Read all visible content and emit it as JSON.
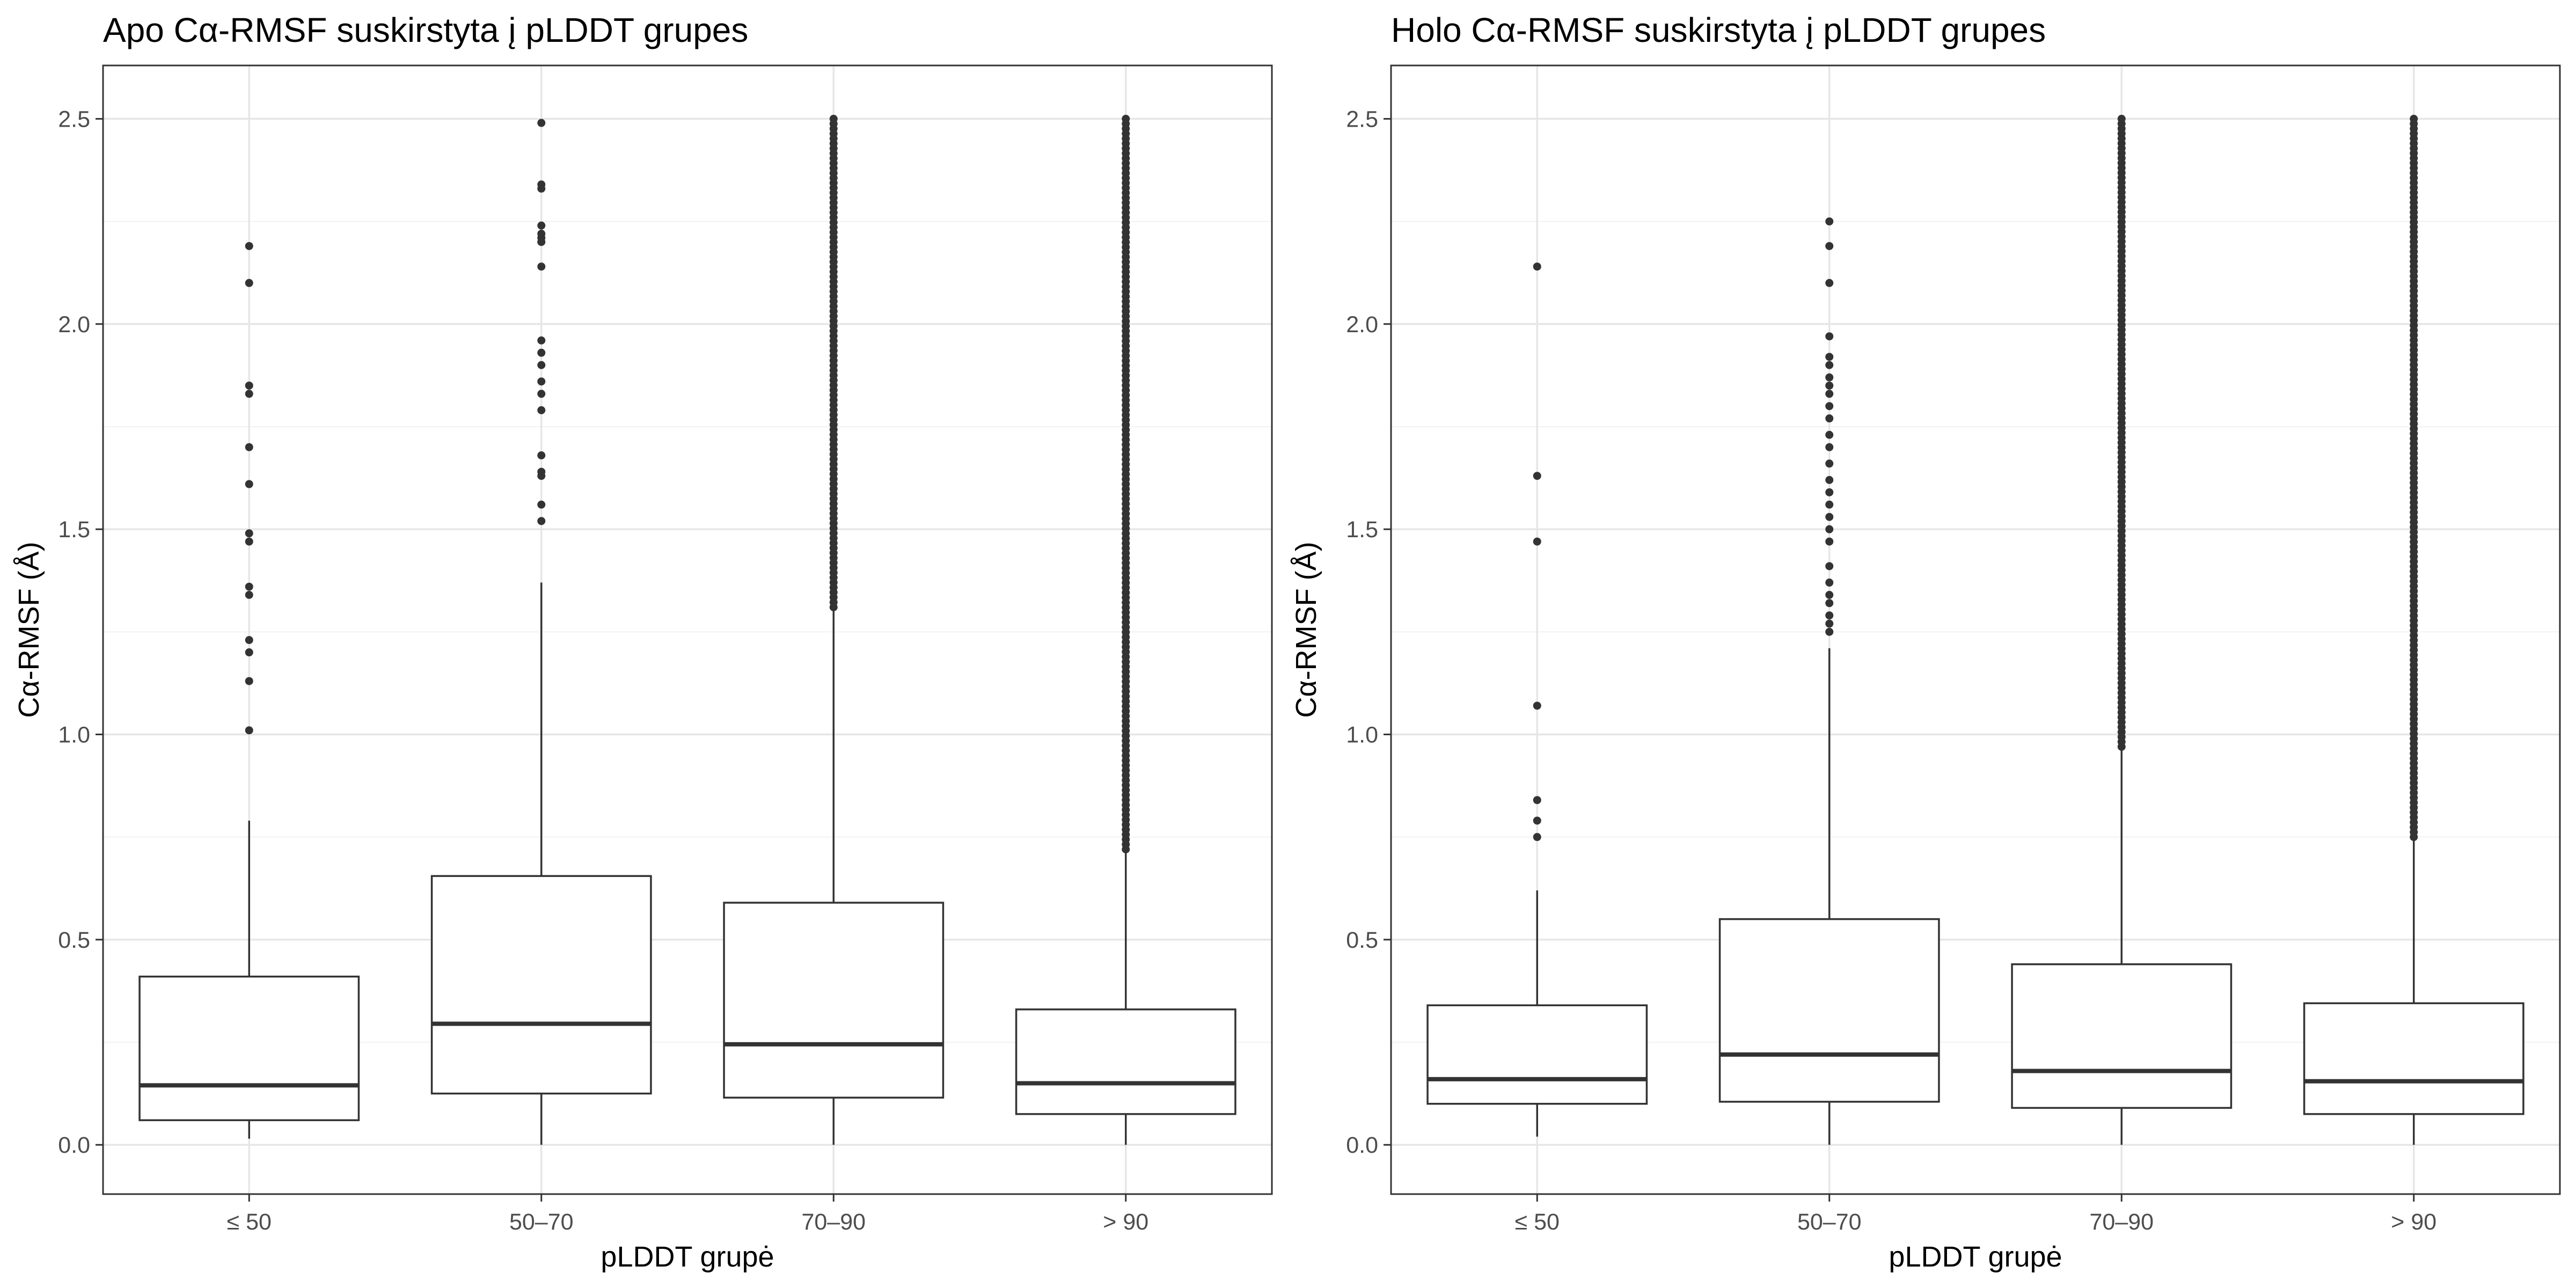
{
  "chart_data": [
    {
      "type": "box",
      "title": "Apo Cα-RMSF suskirstyta į pLDDT grupes",
      "xlabel": "pLDDT grupė",
      "ylabel": "Cα-RMSF (Å)",
      "ylim": [
        -0.12,
        2.63
      ],
      "yticks": [
        0.0,
        0.5,
        1.0,
        1.5,
        2.0,
        2.5
      ],
      "ytick_labels": [
        "0.0",
        "0.5",
        "1.0",
        "1.5",
        "2.0",
        "2.5"
      ],
      "grid": true,
      "categories": [
        "≤ 50",
        "50–70",
        "70–90",
        "> 90"
      ],
      "boxes": [
        {
          "category": "≤ 50",
          "whisker_low": 0.015,
          "q1": 0.06,
          "median": 0.145,
          "q3": 0.41,
          "whisker_high": 0.79,
          "outliers": [
            1.01,
            1.13,
            1.2,
            1.23,
            1.34,
            1.36,
            1.47,
            1.49,
            1.61,
            1.7,
            1.83,
            1.85,
            2.1,
            2.19
          ]
        },
        {
          "category": "50–70",
          "whisker_low": 0.0,
          "q1": 0.125,
          "median": 0.295,
          "q3": 0.655,
          "whisker_high": 1.37,
          "outliers": [
            1.52,
            1.56,
            1.63,
            1.64,
            1.68,
            1.79,
            1.83,
            1.86,
            1.9,
            1.93,
            1.96,
            2.14,
            2.2,
            2.21,
            2.22,
            2.24,
            2.33,
            2.34,
            2.49
          ]
        },
        {
          "category": "70–90",
          "whisker_low": 0.0,
          "q1": 0.115,
          "median": 0.245,
          "q3": 0.59,
          "whisker_high": 1.31,
          "outliers_dense_range": [
            1.31,
            2.5
          ]
        },
        {
          "category": "> 90",
          "whisker_low": 0.0,
          "q1": 0.075,
          "median": 0.15,
          "q3": 0.33,
          "whisker_high": 0.72,
          "outliers_dense_range": [
            0.72,
            2.5
          ]
        }
      ]
    },
    {
      "type": "box",
      "title": "Holo Cα-RMSF suskirstyta į pLDDT grupes",
      "xlabel": "pLDDT grupė",
      "ylabel": "Cα-RMSF (Å)",
      "ylim": [
        -0.12,
        2.63
      ],
      "yticks": [
        0.0,
        0.5,
        1.0,
        1.5,
        2.0,
        2.5
      ],
      "ytick_labels": [
        "0.0",
        "0.5",
        "1.0",
        "1.5",
        "2.0",
        "2.5"
      ],
      "grid": true,
      "categories": [
        "≤ 50",
        "50–70",
        "70–90",
        "> 90"
      ],
      "boxes": [
        {
          "category": "≤ 50",
          "whisker_low": 0.02,
          "q1": 0.1,
          "median": 0.16,
          "q3": 0.34,
          "whisker_high": 0.62,
          "outliers": [
            0.75,
            0.79,
            0.84,
            1.07,
            1.47,
            1.63,
            2.14
          ]
        },
        {
          "category": "50–70",
          "whisker_low": 0.0,
          "q1": 0.105,
          "median": 0.22,
          "q3": 0.55,
          "whisker_high": 1.21,
          "outliers": [
            1.25,
            1.27,
            1.29,
            1.32,
            1.34,
            1.37,
            1.41,
            1.47,
            1.5,
            1.53,
            1.56,
            1.59,
            1.62,
            1.66,
            1.7,
            1.73,
            1.77,
            1.8,
            1.83,
            1.85,
            1.87,
            1.9,
            1.92,
            1.97,
            2.1,
            2.19,
            2.25
          ]
        },
        {
          "category": "70–90",
          "whisker_low": 0.0,
          "q1": 0.09,
          "median": 0.18,
          "q3": 0.44,
          "whisker_high": 0.97,
          "outliers_dense_range": [
            0.97,
            2.5
          ]
        },
        {
          "category": "> 90",
          "whisker_low": 0.0,
          "q1": 0.075,
          "median": 0.155,
          "q3": 0.345,
          "whisker_high": 0.75,
          "outliers_dense_range": [
            0.75,
            2.5
          ]
        }
      ]
    }
  ]
}
